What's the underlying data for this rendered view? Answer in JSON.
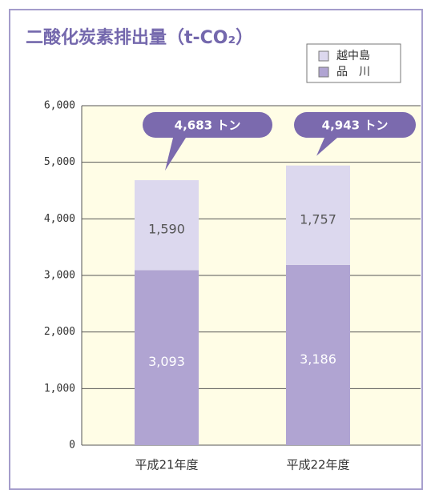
{
  "chart_data": {
    "type": "stacked_bar",
    "title": "二酸化炭素排出量（t-CO₂）",
    "categories": [
      "平成21年度",
      "平成22年度"
    ],
    "series": [
      {
        "name": "品　川",
        "color": "#b0a4d2",
        "values": [
          3093,
          3186
        ],
        "value_labels": [
          "3,093",
          "3,186"
        ]
      },
      {
        "name": "越中島",
        "color": "#dcd8ee",
        "values": [
          1590,
          1757
        ],
        "value_labels": [
          "1,590",
          "1,757"
        ]
      }
    ],
    "annotations": [
      "4,683 トン",
      "4,943 トン"
    ],
    "annotation_color": "#7b6aae",
    "ylim": [
      0,
      6000
    ],
    "yticks": [
      0,
      {
        "value": 1000,
        "label": "1,000"
      },
      {
        "value": 2000,
        "label": "2,000"
      },
      {
        "value": 3000,
        "label": "3,000"
      },
      {
        "value": 4000,
        "label": "4,000"
      },
      {
        "value": 5000,
        "label": "5,000"
      },
      {
        "value": 6000,
        "label": "6,000"
      }
    ],
    "grid": true,
    "legend": "upper right",
    "plot_background": "#fffde6"
  }
}
